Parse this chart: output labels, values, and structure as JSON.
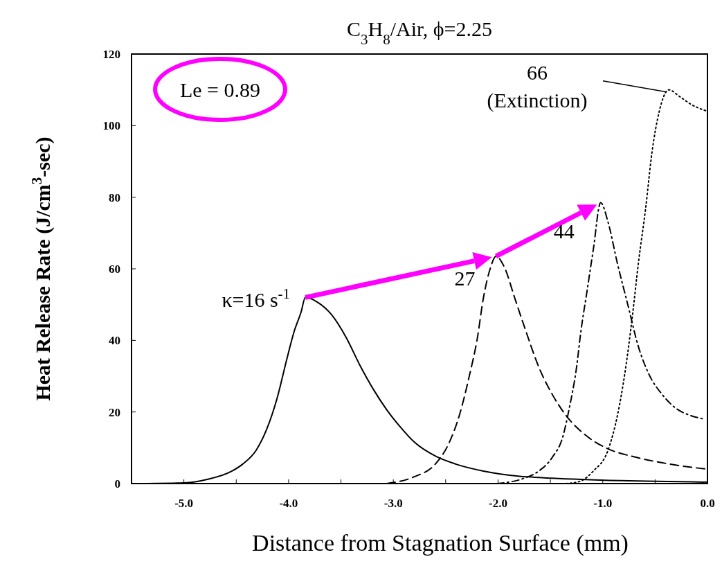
{
  "chart_data": {
    "type": "line",
    "title": "C$_{3}$H$_{8}$/Air, ϕ=2.25",
    "xlabel": "Distance from Stagnation Surface (mm)",
    "ylabel": "Heat Release Rate (J/cm$^{3}$-sec)",
    "xlim": [
      -5.5,
      0
    ],
    "xticks": [
      {
        "value": -5,
        "label": "-5.0"
      },
      {
        "value": -4.5,
        "label": null
      },
      {
        "value": -4,
        "label": "-4.0"
      },
      {
        "value": -3.5,
        "label": null
      },
      {
        "value": -3,
        "label": "-3.0"
      },
      {
        "value": -2.5,
        "label": null
      },
      {
        "value": -2,
        "label": "-2.0"
      },
      {
        "value": -1.5,
        "label": null
      },
      {
        "value": -1,
        "label": "-1.0"
      },
      {
        "value": -0.5,
        "label": null
      },
      {
        "value": 0,
        "label": "0.0"
      }
    ],
    "ylim": [
      0,
      120
    ],
    "yticks": [
      0,
      20,
      40,
      60,
      80,
      100,
      120
    ],
    "grid": false,
    "series": [
      {
        "color": "#000000",
        "line_style": "solid",
        "x": [
          -5.49,
          -5.0,
          -4.77,
          -4.54,
          -4.44,
          -4.31,
          -4.21,
          -4.11,
          -4.02,
          -3.95,
          -3.88,
          -3.84,
          -3.72,
          -3.59,
          -3.45,
          -3.32,
          -3.19,
          -3.06,
          -2.93,
          -2.8,
          -2.6,
          -2.4,
          -2.14,
          -1.81,
          -1.48,
          -0.82,
          0
        ],
        "values": [
          0,
          0.2,
          1.2,
          3.5,
          5.4,
          9.3,
          15.1,
          23.8,
          34.4,
          42.2,
          48.0,
          52,
          50.6,
          47.2,
          40.8,
          33.1,
          26.3,
          20.5,
          15.7,
          11.6,
          7.7,
          5.4,
          3.5,
          2.1,
          1.5,
          0.8,
          0.4
        ]
      },
      {
        "color": "#000000",
        "line_style": "dashed",
        "x": [
          -3.06,
          -2.8,
          -2.6,
          -2.47,
          -2.37,
          -2.27,
          -2.2,
          -2.14,
          -2.07,
          -2.02,
          -1.94,
          -1.84,
          -1.74,
          -1.61,
          -1.48,
          -1.35,
          -1.15,
          -0.95,
          -0.69,
          -0.43,
          0
        ],
        "values": [
          0,
          1.9,
          5.4,
          11.2,
          19.0,
          30.6,
          40.2,
          51.8,
          60.5,
          63.5,
          60.5,
          51.8,
          43.1,
          32.5,
          24.8,
          19.0,
          13.2,
          9.7,
          7.4,
          5.8,
          4
        ]
      },
      {
        "color": "#000000",
        "line_style": "dashdot",
        "x": [
          -2.01,
          -1.75,
          -1.61,
          -1.48,
          -1.38,
          -1.32,
          -1.25,
          -1.21,
          -1.15,
          -1.09,
          -1.02,
          -0.95,
          -0.86,
          -0.76,
          -0.66,
          -0.56,
          -0.43,
          -0.3,
          -0.16,
          -0.03
        ],
        "values": [
          0,
          1.5,
          3.5,
          7.4,
          13.2,
          21.0,
          32.5,
          42.2,
          53.8,
          65.4,
          78.5,
          73.1,
          61.5,
          49.9,
          38.3,
          30.6,
          24.8,
          21.0,
          19.0,
          18.0
        ]
      },
      {
        "color": "#000000",
        "line_style": "dotted",
        "x": [
          -1.35,
          -1.22,
          -1.09,
          -0.95,
          -0.86,
          -0.79,
          -0.72,
          -0.66,
          -0.59,
          -0.53,
          -0.46,
          -0.37,
          -0.26,
          -0.16,
          0
        ],
        "values": [
          0,
          0.6,
          3.5,
          9.3,
          19.0,
          30.6,
          46.0,
          61.5,
          77.0,
          92.5,
          104.0,
          110,
          108,
          106,
          104
        ]
      }
    ],
    "annotations": [
      {
        "text": "κ=16 s$^{-1}$",
        "x": -3.84,
        "y": 52
      },
      {
        "text": "27",
        "x": -2.02,
        "y": 63.5
      },
      {
        "text": "44",
        "x": -1.02,
        "y": 78.5
      },
      {
        "text": "66\n(Extinction)",
        "x": -0.37,
        "y": 110
      },
      "Le = 0.89"
    ]
  }
}
